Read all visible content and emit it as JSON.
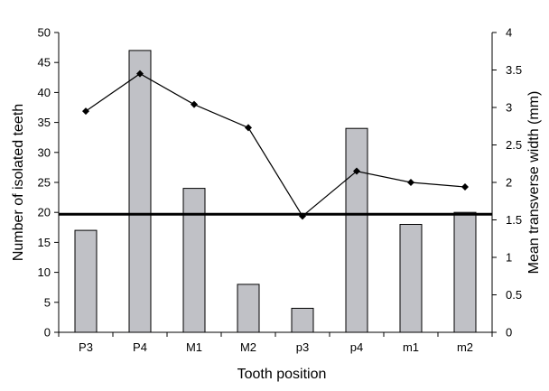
{
  "chart_data": {
    "type": "bar",
    "categories": [
      "P3",
      "P4",
      "M1",
      "M2",
      "p3",
      "p4",
      "m1",
      "m2"
    ],
    "series": [
      {
        "type": "bar",
        "axis": "left",
        "values": [
          17,
          47,
          24,
          8,
          4,
          34,
          18,
          20
        ],
        "color": "#c0c1c6"
      },
      {
        "type": "line",
        "axis": "right",
        "values": [
          2.95,
          3.45,
          3.04,
          2.73,
          1.55,
          2.15,
          2.0,
          1.94
        ],
        "color": "#000000"
      }
    ],
    "reference_line": {
      "axis": "left",
      "value": 19.7
    },
    "xlabel": "Tooth position",
    "ylabel": "Number of isolated teeth",
    "y2label": "Mean transverse width (mm)",
    "ylim": [
      0,
      50
    ],
    "y2lim": [
      0,
      4
    ],
    "yticks": [
      "0",
      "5",
      "10",
      "15",
      "20",
      "25",
      "30",
      "35",
      "40",
      "45",
      "50"
    ],
    "y2ticks": [
      "0",
      "0.5",
      "1",
      "1.5",
      "2",
      "2.5",
      "3",
      "3.5",
      "4"
    ],
    "grid": false
  }
}
